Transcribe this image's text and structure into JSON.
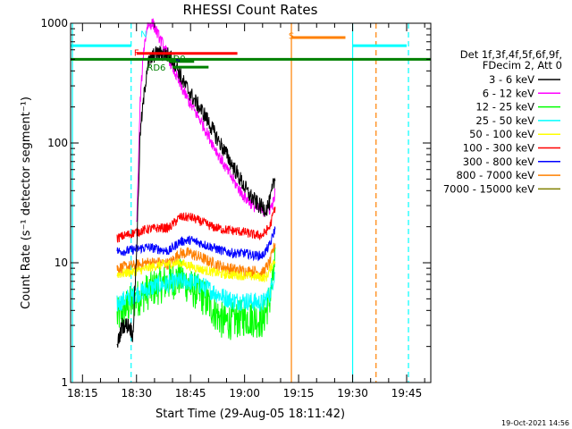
{
  "chart_data": {
    "type": "line",
    "title": "RHESSI Count Rates",
    "xlabel": "Start Time (29-Aug-05 18:11:42)",
    "ylabel": "Count Rate (s⁻¹ detector segment⁻¹)",
    "yscale": "log",
    "ylim": [
      1,
      1000
    ],
    "y_ticks": [
      {
        "value": 1,
        "label": "1"
      },
      {
        "value": 10,
        "label": "10"
      },
      {
        "value": 100,
        "label": "100"
      },
      {
        "value": 1000,
        "label": "1000"
      }
    ],
    "x_unit": "minutes after 18:00 on 29-Aug-05",
    "xlim": [
      11.7,
      111.7
    ],
    "x_ticks": [
      {
        "value": 15,
        "label": "18:15"
      },
      {
        "value": 30,
        "label": "18:30"
      },
      {
        "value": 45,
        "label": "18:45"
      },
      {
        "value": 60,
        "label": "19:00"
      },
      {
        "value": 75,
        "label": "19:15"
      },
      {
        "value": 90,
        "label": "19:30"
      },
      {
        "value": 105,
        "label": "19:45"
      }
    ],
    "grid": false,
    "legend_position": "right",
    "legend_header": [
      "Det 1f,3f,4f,5f,6f,9f,",
      "FDecim 2, Att 0"
    ],
    "series": [
      {
        "name": "3 - 6 keV",
        "color": "#000000",
        "noise": 0.07,
        "points": [
          [
            24.6,
            2.0
          ],
          [
            26,
            3
          ],
          [
            28,
            3
          ],
          [
            29,
            2.5
          ],
          [
            30,
            12
          ],
          [
            31,
            120
          ],
          [
            33,
            450
          ],
          [
            35,
            550
          ],
          [
            37,
            560
          ],
          [
            39,
            540
          ],
          [
            41,
            450
          ],
          [
            43,
            320
          ],
          [
            46,
            230
          ],
          [
            49,
            170
          ],
          [
            52,
            115
          ],
          [
            55,
            80
          ],
          [
            58,
            55
          ],
          [
            61,
            38
          ],
          [
            64,
            30
          ],
          [
            66,
            28
          ],
          [
            67,
            32
          ],
          [
            68,
            45
          ],
          [
            68.6,
            50
          ]
        ]
      },
      {
        "name": "6 - 12 keV",
        "color": "#ff00ff",
        "noise": 0.05,
        "points": [
          [
            30,
            20
          ],
          [
            30.5,
            60
          ],
          [
            31,
            220
          ],
          [
            32,
            600
          ],
          [
            33,
            950
          ],
          [
            34.5,
            1000
          ],
          [
            36,
            800
          ],
          [
            38,
            600
          ],
          [
            40,
            430
          ],
          [
            42,
            310
          ],
          [
            45,
            210
          ],
          [
            48,
            150
          ],
          [
            51,
            100
          ],
          [
            54,
            68
          ],
          [
            57,
            48
          ],
          [
            60,
            35
          ],
          [
            63,
            29
          ],
          [
            65,
            27
          ],
          [
            67,
            28
          ],
          [
            68,
            32
          ],
          [
            68.6,
            40
          ]
        ]
      },
      {
        "name": "12 - 25 keV",
        "color": "#00ff00",
        "noise": 0.16,
        "points": [
          [
            24.6,
            3.5
          ],
          [
            27,
            4.2
          ],
          [
            30,
            5
          ],
          [
            32,
            5.5
          ],
          [
            35,
            6.2
          ],
          [
            38,
            6.8
          ],
          [
            40,
            7
          ],
          [
            42,
            7.6
          ],
          [
            45,
            6.2
          ],
          [
            48,
            5.4
          ],
          [
            51,
            4.2
          ],
          [
            54,
            3.2
          ],
          [
            57,
            3.3
          ],
          [
            60,
            3.5
          ],
          [
            63,
            3.4
          ],
          [
            65,
            3.3
          ],
          [
            67,
            5
          ],
          [
            68.6,
            10
          ]
        ]
      },
      {
        "name": "25 - 50 keV",
        "color": "#00ffff",
        "noise": 0.08,
        "points": [
          [
            24.6,
            4.5
          ],
          [
            27,
            5
          ],
          [
            30,
            5.5
          ],
          [
            33,
            6
          ],
          [
            36,
            6.5
          ],
          [
            39,
            6.7
          ],
          [
            42,
            7
          ],
          [
            45,
            7
          ],
          [
            48,
            6.5
          ],
          [
            51,
            5.8
          ],
          [
            54,
            5.2
          ],
          [
            57,
            4.8
          ],
          [
            60,
            4.8
          ],
          [
            63,
            4.7
          ],
          [
            65,
            4.6
          ],
          [
            67,
            5.5
          ],
          [
            68.6,
            9
          ]
        ]
      },
      {
        "name": "50 - 100 keV",
        "color": "#ffff00",
        "noise": 0.04,
        "points": [
          [
            24.6,
            8
          ],
          [
            30,
            8.5
          ],
          [
            36,
            9.5
          ],
          [
            42,
            10
          ],
          [
            48,
            8.8
          ],
          [
            54,
            8
          ],
          [
            60,
            7.8
          ],
          [
            66,
            7.5
          ],
          [
            68.6,
            11
          ]
        ]
      },
      {
        "name": "100 - 300 keV",
        "color": "#ff0000",
        "noise": 0.04,
        "points": [
          [
            24.6,
            16
          ],
          [
            27,
            17
          ],
          [
            30,
            18
          ],
          [
            33,
            19
          ],
          [
            36,
            19.5
          ],
          [
            39,
            19.5
          ],
          [
            42,
            24
          ],
          [
            45,
            24
          ],
          [
            48,
            22
          ],
          [
            51,
            20
          ],
          [
            54,
            19
          ],
          [
            57,
            18.5
          ],
          [
            60,
            18
          ],
          [
            63,
            17
          ],
          [
            65,
            17
          ],
          [
            67,
            20
          ],
          [
            68.6,
            30
          ]
        ]
      },
      {
        "name": "300 - 800 keV",
        "color": "#0000ff",
        "noise": 0.04,
        "points": [
          [
            24.6,
            12.5
          ],
          [
            27,
            12.5
          ],
          [
            30,
            13
          ],
          [
            33,
            13.5
          ],
          [
            36,
            13
          ],
          [
            39,
            12.5
          ],
          [
            42,
            15
          ],
          [
            45,
            15.5
          ],
          [
            48,
            14.5
          ],
          [
            51,
            13.5
          ],
          [
            54,
            12.5
          ],
          [
            57,
            12
          ],
          [
            60,
            12
          ],
          [
            63,
            11.5
          ],
          [
            65,
            11.5
          ],
          [
            67,
            14
          ],
          [
            68.6,
            20
          ]
        ]
      },
      {
        "name": "800 - 7000 keV",
        "color": "#ff8000",
        "noise": 0.05,
        "points": [
          [
            24.6,
            9
          ],
          [
            27,
            9.2
          ],
          [
            30,
            9.5
          ],
          [
            33,
            10
          ],
          [
            36,
            10
          ],
          [
            39,
            9.8
          ],
          [
            42,
            12
          ],
          [
            45,
            12
          ],
          [
            48,
            11
          ],
          [
            51,
            10
          ],
          [
            54,
            9.2
          ],
          [
            57,
            8.8
          ],
          [
            60,
            8.5
          ],
          [
            63,
            8.5
          ],
          [
            65,
            8.2
          ],
          [
            67,
            10
          ],
          [
            68.6,
            15
          ]
        ]
      },
      {
        "name": "7000 - 15000 keV",
        "color": "#808000",
        "noise": 0.04,
        "points": []
      }
    ],
    "annotations": {
      "flags": [
        {
          "label": "N",
          "color": "#00ffff",
          "label_x": 32,
          "label_y": 810
        },
        {
          "label": "F",
          "color": "#ff0000",
          "label_x": 30,
          "label_y": 560
        },
        {
          "label": "RD0",
          "color": "#008000",
          "label_x": 41,
          "label_y": 505
        },
        {
          "label": "RD6",
          "color": "#008000",
          "label_x": 35.5,
          "label_y": 425
        },
        {
          "label": "S",
          "color": "#ff8000",
          "label_x": 73,
          "label_y": 780
        }
      ],
      "bars": [
        {
          "name": "night",
          "color": "#00ffff",
          "y": 650,
          "segments": [
            [
              11.7,
              28.5
            ],
            [
              90,
              105
            ]
          ]
        },
        {
          "name": "flare",
          "color": "#ff0000",
          "y": 560,
          "segments": [
            [
              30,
              58
            ]
          ]
        },
        {
          "name": "decimation",
          "color": "#008000",
          "y": 500,
          "segments": [
            [
              11.7,
              111.7
            ]
          ]
        },
        {
          "name": "saa",
          "color": "#ff8000",
          "y": 760,
          "segments": [
            [
              73,
              88
            ]
          ]
        },
        {
          "name": "rd0",
          "color": "#008000",
          "y": 480,
          "segments": [
            [
              39,
              46
            ]
          ]
        },
        {
          "name": "rd6",
          "color": "#008000",
          "y": 430,
          "segments": [
            [
              40,
              50
            ]
          ]
        },
        {
          "name": "marker",
          "color": "#000080",
          "y": 490,
          "segments": [
            [
              41,
              42
            ]
          ]
        }
      ],
      "vlines": [
        {
          "x": 12.2,
          "color": "#00ffff",
          "style": "solid"
        },
        {
          "x": 28.5,
          "color": "#00ffff",
          "style": "dashed"
        },
        {
          "x": 73,
          "color": "#ff8000",
          "style": "solid"
        },
        {
          "x": 90,
          "color": "#00ffff",
          "style": "solid"
        },
        {
          "x": 96.5,
          "color": "#ff8000",
          "style": "dashed"
        },
        {
          "x": 105.5,
          "color": "#00ffff",
          "style": "dashed"
        }
      ]
    },
    "timestamp": "19-Oct-2021 14:56"
  }
}
